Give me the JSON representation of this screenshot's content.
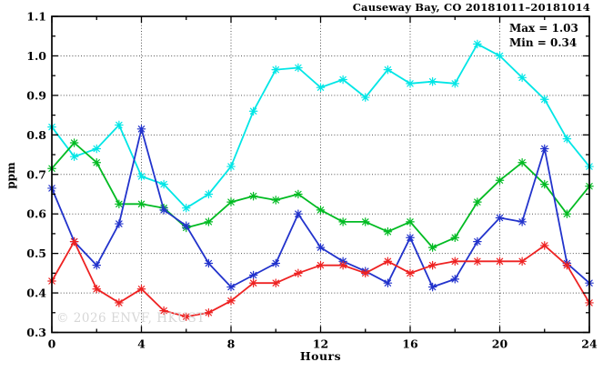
{
  "title": "Causeway Bay, CO 20181011–20181014",
  "annotation": {
    "max_label": "Max = 1.03",
    "min_label": "Min = 0.34"
  },
  "watermark": "© 2026 ENVF, HKUST",
  "colors": {
    "frame": "#000000",
    "grid": "#555555",
    "watermark": "#d7d7d7"
  },
  "chart_data": {
    "type": "line",
    "title": "Causeway Bay, CO 20181011–20181014",
    "xlabel": "Hours",
    "ylabel": "ppm",
    "xlim": [
      0,
      24
    ],
    "ylim": [
      0.3,
      1.1
    ],
    "x_major_ticks": [
      0,
      4,
      8,
      12,
      16,
      20,
      24
    ],
    "x_minor_ticks": [
      2,
      6,
      10,
      14,
      18,
      22
    ],
    "y_major_ticks": [
      0.3,
      0.4,
      0.5,
      0.6,
      0.7,
      0.8,
      0.9,
      1.0,
      1.1
    ],
    "y_minor_ticks": [
      0.35,
      0.45,
      0.55,
      0.65,
      0.75,
      0.85,
      0.95,
      1.05
    ],
    "grid": "dotted-at-major-ticks",
    "legend_position": "none",
    "marker": "asterisk",
    "annotations": [
      "Max = 1.03",
      "Min = 0.34"
    ],
    "x": [
      0,
      1,
      2,
      3,
      4,
      5,
      6,
      7,
      8,
      9,
      10,
      11,
      12,
      13,
      14,
      15,
      16,
      17,
      18,
      19,
      20,
      21,
      22,
      23,
      24
    ],
    "series": [
      {
        "name": "series-cyan",
        "color": "#00E6E6",
        "values": [
          0.82,
          0.745,
          0.765,
          0.825,
          0.695,
          0.675,
          0.615,
          0.65,
          0.72,
          0.86,
          0.965,
          0.97,
          0.92,
          0.94,
          0.895,
          0.965,
          0.93,
          0.935,
          0.93,
          1.03,
          1.0,
          0.945,
          0.89,
          0.79,
          0.72
        ]
      },
      {
        "name": "series-green",
        "color": "#00BB22",
        "values": [
          0.715,
          0.78,
          0.73,
          0.625,
          0.625,
          0.615,
          0.565,
          0.58,
          0.63,
          0.645,
          0.635,
          0.65,
          0.61,
          0.58,
          0.58,
          0.555,
          0.58,
          0.515,
          0.54,
          0.63,
          0.685,
          0.73,
          0.675,
          0.6,
          0.67
        ]
      },
      {
        "name": "series-blue",
        "color": "#2233CC",
        "values": [
          0.665,
          0.53,
          0.47,
          0.575,
          0.815,
          0.61,
          0.57,
          0.475,
          0.415,
          0.445,
          0.475,
          0.6,
          0.515,
          0.48,
          0.455,
          0.425,
          0.54,
          0.415,
          0.435,
          0.53,
          0.59,
          0.58,
          0.765,
          0.475,
          0.425
        ]
      },
      {
        "name": "series-red",
        "color": "#EE2222",
        "values": [
          0.43,
          0.53,
          0.41,
          0.375,
          0.41,
          0.355,
          0.34,
          0.35,
          0.38,
          0.425,
          0.425,
          0.45,
          0.47,
          0.47,
          0.45,
          0.48,
          0.45,
          0.47,
          0.48,
          0.48,
          0.48,
          0.48,
          0.52,
          0.47,
          0.375
        ]
      }
    ]
  }
}
